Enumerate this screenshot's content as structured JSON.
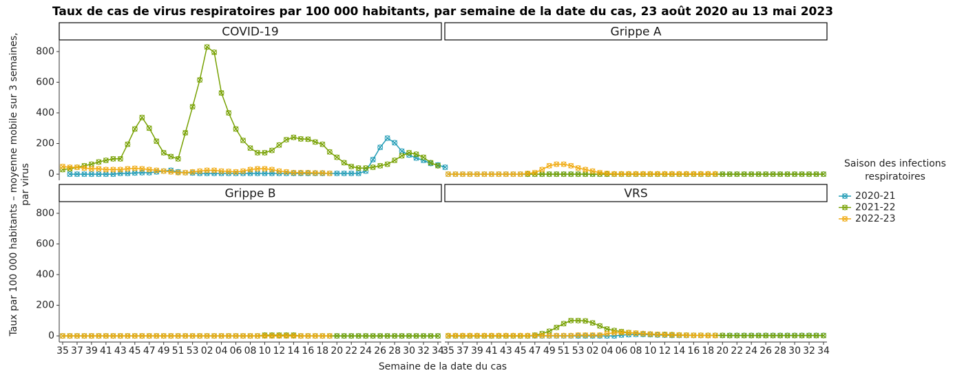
{
  "chart_data": {
    "type": "line",
    "title": "Taux de cas de virus respiratoires par 100 000 habitants, par semaine de la date du cas, 23 août 2020 au 13 mai 2023",
    "xlabel": "Semaine de la date du cas",
    "ylabel": [
      "Taux par 100 000 habitants – moyenne mobile sur 3 semaines,",
      "par virus"
    ],
    "legend_title": [
      "Saison des infections",
      "respiratoires"
    ],
    "categories": [
      "35",
      null,
      "37",
      null,
      "39",
      null,
      "41",
      null,
      "43",
      null,
      "45",
      null,
      "47",
      null,
      "49",
      null,
      "51",
      null,
      "53",
      null,
      "02",
      null,
      "04",
      null,
      "06",
      null,
      "08",
      null,
      "10",
      null,
      "12",
      null,
      "14",
      null,
      "16",
      null,
      "18",
      null,
      "20",
      null,
      "22",
      null,
      "24",
      null,
      "26",
      null,
      "28",
      null,
      "30",
      null,
      "32",
      null,
      "34"
    ],
    "ylim": [
      -40,
      876
    ],
    "yticks": [
      0,
      200,
      400,
      600,
      800
    ],
    "seasons": [
      {
        "name": "2020-21",
        "color": "#1f9bb5"
      },
      {
        "name": "2021-22",
        "color": "#76a000"
      },
      {
        "name": "2022-23",
        "color": "#f0aa10"
      }
    ],
    "panels": [
      {
        "title": "COVID-19",
        "values": [
          [
            null,
            0,
            0,
            0,
            0,
            0,
            0,
            0,
            5,
            5,
            8,
            10,
            10,
            15,
            20,
            25,
            15,
            10,
            8,
            5,
            5,
            5,
            5,
            5,
            5,
            5,
            5,
            5,
            5,
            5,
            5,
            5,
            5,
            5,
            5,
            5,
            5,
            5,
            5,
            5,
            5,
            5,
            20,
            95,
            175,
            235,
            205,
            150,
            125,
            105,
            90,
            70,
            60,
            45
          ],
          [
            30,
            35,
            45,
            55,
            65,
            80,
            90,
            100,
            100,
            195,
            295,
            370,
            300,
            215,
            140,
            115,
            100,
            270,
            440,
            615,
            830,
            795,
            530,
            400,
            295,
            220,
            170,
            140,
            140,
            155,
            190,
            225,
            240,
            230,
            228,
            210,
            195,
            145,
            110,
            75,
            50,
            40,
            40,
            45,
            55,
            65,
            90,
            120,
            140,
            130,
            110,
            75,
            55
          ],
          [
            50,
            45,
            45,
            40,
            35,
            35,
            30,
            30,
            30,
            35,
            38,
            35,
            30,
            25,
            20,
            15,
            10,
            10,
            15,
            20,
            25,
            25,
            20,
            18,
            15,
            20,
            30,
            35,
            35,
            30,
            20,
            15,
            10,
            10,
            10,
            8,
            8,
            5,
            null,
            null,
            null,
            null,
            null,
            null,
            null,
            null,
            null,
            null,
            null,
            null,
            null,
            null,
            null
          ]
        ]
      },
      {
        "title": "Grippe A",
        "values": [
          [
            0,
            0,
            0,
            0,
            0,
            0,
            0,
            0,
            0,
            0,
            0,
            0,
            0,
            0,
            0,
            0,
            0,
            0,
            0,
            0,
            0,
            0,
            0,
            0,
            0,
            0,
            0,
            0,
            0,
            0,
            0,
            0,
            0,
            0,
            0,
            0,
            0,
            0,
            0,
            0,
            0,
            0,
            0,
            0,
            0,
            0,
            0,
            0,
            0,
            0,
            0,
            0,
            0
          ],
          [
            null,
            null,
            null,
            null,
            null,
            null,
            null,
            null,
            null,
            null,
            null,
            0,
            0,
            0,
            0,
            0,
            0,
            0,
            0,
            0,
            0,
            0,
            0,
            0,
            0,
            0,
            0,
            0,
            0,
            0,
            0,
            0,
            0,
            0,
            0,
            0,
            0,
            0,
            0,
            0,
            0,
            0,
            0,
            0,
            0,
            0,
            0,
            0,
            0,
            0,
            0,
            0,
            0
          ],
          [
            0,
            0,
            0,
            0,
            0,
            0,
            0,
            0,
            0,
            0,
            0,
            5,
            10,
            30,
            55,
            65,
            65,
            55,
            40,
            30,
            20,
            10,
            5,
            2,
            2,
            2,
            2,
            2,
            2,
            2,
            2,
            2,
            2,
            2,
            2,
            2,
            2,
            2,
            null,
            null,
            null,
            null,
            null,
            null,
            null,
            null,
            null,
            null,
            null,
            null,
            null,
            null,
            null
          ]
        ]
      },
      {
        "title": "Grippe B",
        "values": [
          [
            0,
            0,
            0,
            0,
            0,
            0,
            0,
            0,
            0,
            0,
            0,
            0,
            0,
            0,
            0,
            0,
            0,
            0,
            0,
            0,
            0,
            0,
            0,
            0,
            0,
            0,
            0,
            0,
            0,
            0,
            0,
            0,
            0,
            0,
            0,
            0,
            0,
            0,
            0,
            0,
            0,
            0,
            0,
            0,
            0,
            0,
            0,
            0,
            0,
            0,
            0,
            0,
            0
          ],
          [
            0,
            0,
            0,
            0,
            0,
            0,
            0,
            0,
            0,
            0,
            0,
            0,
            0,
            0,
            0,
            0,
            0,
            0,
            0,
            0,
            0,
            0,
            0,
            0,
            0,
            0,
            0,
            0,
            5,
            5,
            5,
            5,
            5,
            0,
            0,
            0,
            0,
            0,
            0,
            0,
            0,
            0,
            0,
            0,
            0,
            0,
            0,
            0,
            0,
            0,
            0,
            0,
            0
          ],
          [
            0,
            0,
            0,
            0,
            0,
            0,
            0,
            0,
            0,
            0,
            0,
            0,
            0,
            0,
            0,
            0,
            0,
            0,
            0,
            0,
            0,
            0,
            0,
            0,
            0,
            0,
            0,
            0,
            0,
            0,
            0,
            0,
            0,
            0,
            0,
            0,
            0,
            0,
            null,
            null,
            null,
            null,
            null,
            null,
            null,
            null,
            null,
            null,
            null,
            null,
            null,
            null,
            null
          ]
        ]
      },
      {
        "title": "VRS",
        "values": [
          [
            0,
            0,
            0,
            0,
            0,
            0,
            0,
            0,
            0,
            0,
            0,
            0,
            0,
            0,
            0,
            0,
            0,
            0,
            0,
            0,
            0,
            0,
            0,
            0,
            5,
            8,
            10,
            10,
            8,
            6,
            5,
            3,
            3,
            3,
            3,
            3,
            3,
            3,
            3,
            3,
            3,
            3,
            3,
            3,
            3,
            3,
            3,
            3,
            3,
            3,
            3,
            3,
            3
          ],
          [
            0,
            0,
            0,
            0,
            0,
            0,
            0,
            0,
            0,
            0,
            0,
            0,
            5,
            15,
            30,
            55,
            80,
            100,
            100,
            98,
            85,
            65,
            45,
            35,
            28,
            22,
            18,
            15,
            12,
            10,
            10,
            8,
            6,
            5,
            4,
            4,
            3,
            3,
            3,
            2,
            2,
            2,
            2,
            2,
            2,
            2,
            2,
            2,
            2,
            2,
            2,
            2,
            2
          ],
          [
            2,
            2,
            2,
            2,
            2,
            2,
            2,
            2,
            2,
            2,
            2,
            2,
            2,
            2,
            2,
            2,
            2,
            2,
            5,
            5,
            5,
            5,
            15,
            20,
            22,
            20,
            18,
            15,
            12,
            10,
            8,
            6,
            5,
            4,
            3,
            3,
            2,
            2,
            null,
            null,
            null,
            null,
            null,
            null,
            null,
            null,
            null,
            null,
            null,
            null,
            null,
            null,
            null
          ]
        ]
      }
    ]
  }
}
